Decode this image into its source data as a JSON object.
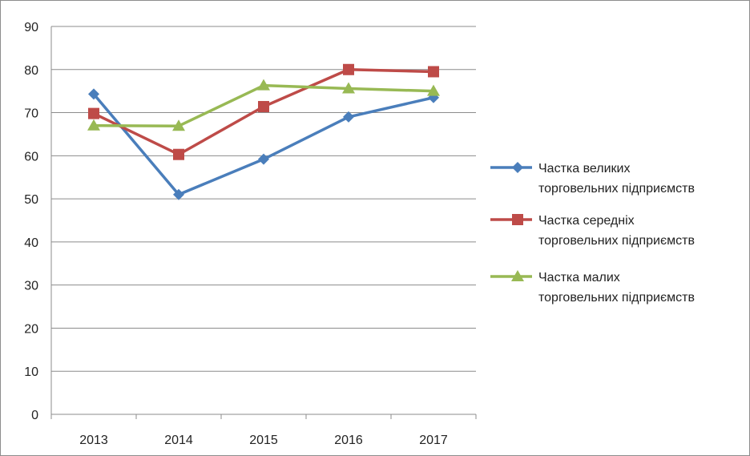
{
  "chart_data": {
    "type": "line",
    "categories": [
      "2013",
      "2014",
      "2015",
      "2016",
      "2017"
    ],
    "ylim": [
      0,
      90
    ],
    "yticks": [
      0,
      10,
      20,
      30,
      40,
      50,
      60,
      70,
      80,
      90
    ],
    "grid": true,
    "legend_position": "right",
    "series": [
      {
        "name_lines": [
          "Частка великих",
          "торговельних підприємств"
        ],
        "values": [
          74.3,
          51,
          59.2,
          69,
          73.5
        ],
        "color": "#4a7ebb",
        "marker": "diamond"
      },
      {
        "name_lines": [
          "Частка середніх",
          "торговельних підприємств"
        ],
        "values": [
          69.8,
          60.3,
          71.4,
          80,
          79.5
        ],
        "color": "#be4b48",
        "marker": "square"
      },
      {
        "name_lines": [
          "Частка малих",
          "торговельних підприємств"
        ],
        "values": [
          67,
          66.9,
          76.3,
          75.6,
          75
        ],
        "color": "#98b954",
        "marker": "triangle"
      }
    ]
  }
}
